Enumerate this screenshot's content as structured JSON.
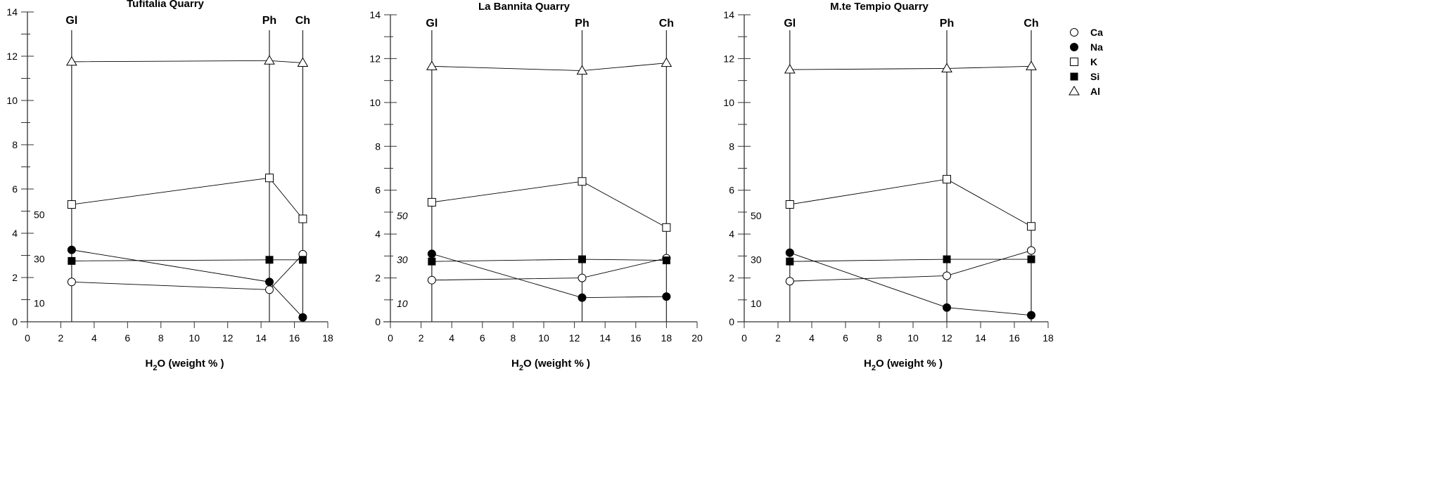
{
  "chart_data": {
    "type": "line",
    "legend": {
      "position": "right",
      "entries": [
        {
          "name": "Ca",
          "marker": "open-circle"
        },
        {
          "name": "Na",
          "marker": "filled-circle"
        },
        {
          "name": "K",
          "marker": "open-square"
        },
        {
          "name": "Si",
          "marker": "filled-square"
        },
        {
          "name": "Al",
          "marker": "open-triangle"
        }
      ]
    },
    "panels": [
      {
        "title": "Tufitalia Quarry",
        "xlabel_main": "H",
        "xlabel_sub": "2",
        "xlabel_rest": "O (weight % )",
        "xlim": [
          0,
          18
        ],
        "xticks": [
          0,
          2,
          4,
          6,
          8,
          10,
          12,
          14,
          16,
          18
        ],
        "ylim": [
          0,
          14
        ],
        "yticks": [
          0,
          2,
          4,
          6,
          8,
          10,
          12,
          14
        ],
        "secondary_labels": [
          {
            "text": "50",
            "y": 5
          },
          {
            "text": "30",
            "y": 3
          },
          {
            "text": "10",
            "y": 1
          }
        ],
        "secondary_italic": false,
        "phases": [
          {
            "label": "Gl",
            "x": 2.65
          },
          {
            "label": "Ph",
            "x": 14.5
          },
          {
            "label": "Ch",
            "x": 16.5
          }
        ],
        "series": [
          {
            "name": "Ca",
            "values": [
              1.8,
              1.45,
              3.05
            ]
          },
          {
            "name": "Na",
            "values": [
              3.25,
              1.8,
              0.2
            ]
          },
          {
            "name": "K",
            "values": [
              5.3,
              6.5,
              4.65
            ]
          },
          {
            "name": "Si",
            "values": [
              2.75,
              2.8,
              2.8
            ]
          },
          {
            "name": "Al",
            "values": [
              11.75,
              11.8,
              11.7
            ]
          }
        ]
      },
      {
        "title": "La Bannita Quarry",
        "xlabel_main": "H",
        "xlabel_sub": "2",
        "xlabel_rest": "O (weight % )",
        "xlim": [
          0,
          20
        ],
        "xticks": [
          0,
          2,
          4,
          6,
          8,
          10,
          12,
          14,
          16,
          18,
          20
        ],
        "ylim": [
          0,
          14
        ],
        "yticks": [
          0,
          2,
          4,
          6,
          8,
          10,
          12,
          14
        ],
        "secondary_labels": [
          {
            "text": "50",
            "y": 5
          },
          {
            "text": "30",
            "y": 3
          },
          {
            "text": "10",
            "y": 1
          }
        ],
        "secondary_italic": true,
        "phases": [
          {
            "label": "Gl",
            "x": 2.7
          },
          {
            "label": "Ph",
            "x": 12.5
          },
          {
            "label": "Ch",
            "x": 18
          }
        ],
        "series": [
          {
            "name": "Ca",
            "values": [
              1.9,
              2.0,
              2.9
            ]
          },
          {
            "name": "Na",
            "values": [
              3.1,
              1.1,
              1.15
            ]
          },
          {
            "name": "K",
            "values": [
              5.45,
              6.4,
              4.3
            ]
          },
          {
            "name": "Si",
            "values": [
              2.75,
              2.85,
              2.8
            ]
          },
          {
            "name": "Al",
            "values": [
              11.65,
              11.45,
              11.8
            ]
          }
        ]
      },
      {
        "title": "M.te Tempio Quarry",
        "xlabel_main": "H",
        "xlabel_sub": "2",
        "xlabel_rest": "O (weight % )",
        "xlim": [
          0,
          18
        ],
        "xticks": [
          0,
          2,
          4,
          6,
          8,
          10,
          12,
          14,
          16,
          18
        ],
        "ylim": [
          0,
          14
        ],
        "yticks": [
          0,
          2,
          4,
          6,
          8,
          10,
          12,
          14
        ],
        "secondary_labels": [
          {
            "text": "50",
            "y": 5
          },
          {
            "text": "30",
            "y": 3
          },
          {
            "text": "10",
            "y": 1
          }
        ],
        "secondary_italic": false,
        "phases": [
          {
            "label": "Gl",
            "x": 2.7
          },
          {
            "label": "Ph",
            "x": 12
          },
          {
            "label": "Ch",
            "x": 17
          }
        ],
        "series": [
          {
            "name": "Ca",
            "values": [
              1.85,
              2.1,
              3.25
            ]
          },
          {
            "name": "Na",
            "values": [
              3.15,
              0.65,
              0.3
            ]
          },
          {
            "name": "K",
            "values": [
              5.35,
              6.5,
              4.35
            ]
          },
          {
            "name": "Si",
            "values": [
              2.75,
              2.85,
              2.85
            ]
          },
          {
            "name": "Al",
            "values": [
              11.5,
              11.55,
              11.65
            ]
          }
        ]
      }
    ]
  }
}
